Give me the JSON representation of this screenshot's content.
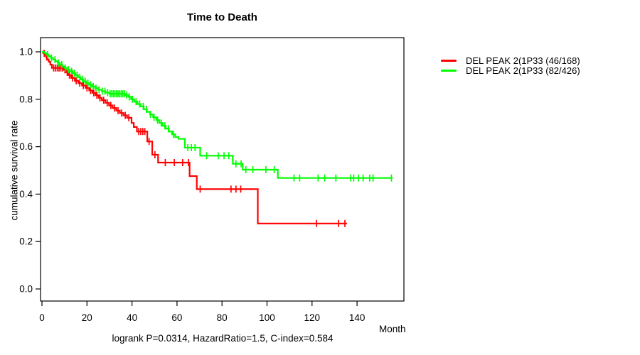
{
  "title": "Time to Death",
  "axes": {
    "ylabel": "cumulative survival rate",
    "xlabel": "Month"
  },
  "annotation": "logrank P=0.0314, HazardRatio=1.5, C-index=0.584",
  "legend": {
    "items": [
      {
        "label": "DEL PEAK  2(1P33 (46/168)",
        "color": "#ff0000"
      },
      {
        "label": "DEL PEAK  2(1P33 (82/426)",
        "color": "#00ff00"
      }
    ]
  },
  "chart_data": {
    "type": "line",
    "variant": "kaplan-meier-step",
    "title": "Time to Death",
    "xlabel": "Month",
    "ylabel": "cumulative survival rate",
    "xlim": [
      0,
      160
    ],
    "ylim": [
      0.0,
      1.0
    ],
    "xticks": [
      0,
      20,
      40,
      60,
      80,
      100,
      120,
      140
    ],
    "yticks": [
      0.0,
      0.2,
      0.4,
      0.6,
      0.8,
      1.0
    ],
    "grid": false,
    "legend_position": "right-outside",
    "annotation": "logrank P=0.0314, HazardRatio=1.5, C-index=0.584",
    "series": [
      {
        "name": "DEL PEAK  2(1P33 (46/168)",
        "color": "#ff0000",
        "end_month": 135.5,
        "steps": [
          [
            0,
            1.0
          ],
          [
            0.6,
            0.994
          ],
          [
            1.2,
            0.988
          ],
          [
            1.8,
            0.978
          ],
          [
            2.4,
            0.968
          ],
          [
            3.0,
            0.958
          ],
          [
            3.7,
            0.946
          ],
          [
            4.4,
            0.932
          ],
          [
            9.6,
            0.924
          ],
          [
            10.6,
            0.914
          ],
          [
            11.6,
            0.902
          ],
          [
            13.0,
            0.89
          ],
          [
            14.6,
            0.878
          ],
          [
            16.2,
            0.868
          ],
          [
            17.8,
            0.858
          ],
          [
            19.4,
            0.848
          ],
          [
            21.0,
            0.837
          ],
          [
            22.4,
            0.827
          ],
          [
            23.8,
            0.817
          ],
          [
            25.2,
            0.806
          ],
          [
            26.6,
            0.796
          ],
          [
            28.2,
            0.785
          ],
          [
            29.8,
            0.774
          ],
          [
            31.4,
            0.763
          ],
          [
            33.0,
            0.752
          ],
          [
            34.6,
            0.742
          ],
          [
            36.2,
            0.732
          ],
          [
            37.8,
            0.722
          ],
          [
            39.8,
            0.7
          ],
          [
            40.8,
            0.683
          ],
          [
            42.2,
            0.664
          ],
          [
            46.8,
            0.622
          ],
          [
            49.0,
            0.566
          ],
          [
            51.6,
            0.533
          ],
          [
            65.6,
            0.476
          ],
          [
            68.8,
            0.421
          ],
          [
            95.9,
            0.276
          ]
        ],
        "censor_months": [
          1.0,
          2.1,
          5.2,
          6.0,
          6.8,
          7.6,
          8.4,
          9.2,
          10.2,
          11.2,
          12.2,
          13.6,
          15.2,
          16.8,
          18.4,
          20.0,
          21.6,
          23.0,
          24.4,
          25.8,
          27.4,
          29.0,
          30.6,
          32.2,
          33.8,
          35.4,
          37.0,
          38.6,
          43.0,
          43.9,
          44.8,
          45.7,
          47.6,
          50.2,
          54.8,
          58.8,
          62.5,
          65.1,
          70.3,
          84.0,
          86.2,
          88.3,
          122.0,
          131.8,
          134.6
        ]
      },
      {
        "name": "DEL PEAK  2(1P33 (82/426)",
        "color": "#00ff00",
        "end_month": 155.8,
        "steps": [
          [
            0,
            1.0
          ],
          [
            1.0,
            0.995
          ],
          [
            2.0,
            0.988
          ],
          [
            3.0,
            0.981
          ],
          [
            4.0,
            0.974
          ],
          [
            5.0,
            0.967
          ],
          [
            6.0,
            0.96
          ],
          [
            7.0,
            0.953
          ],
          [
            8.0,
            0.946
          ],
          [
            9.0,
            0.939
          ],
          [
            10.0,
            0.932
          ],
          [
            11.2,
            0.925
          ],
          [
            12.4,
            0.918
          ],
          [
            13.6,
            0.91
          ],
          [
            14.8,
            0.902
          ],
          [
            16.0,
            0.893
          ],
          [
            17.2,
            0.884
          ],
          [
            18.4,
            0.876
          ],
          [
            19.6,
            0.868
          ],
          [
            20.8,
            0.861
          ],
          [
            22.2,
            0.854
          ],
          [
            23.6,
            0.847
          ],
          [
            25.0,
            0.84
          ],
          [
            26.6,
            0.834
          ],
          [
            28.2,
            0.828
          ],
          [
            30.0,
            0.823
          ],
          [
            36.8,
            0.818
          ],
          [
            38.4,
            0.81
          ],
          [
            39.6,
            0.8
          ],
          [
            41.0,
            0.79
          ],
          [
            42.4,
            0.78
          ],
          [
            43.8,
            0.77
          ],
          [
            45.2,
            0.758
          ],
          [
            46.6,
            0.747
          ],
          [
            48.0,
            0.736
          ],
          [
            49.4,
            0.724
          ],
          [
            50.8,
            0.712
          ],
          [
            52.2,
            0.7
          ],
          [
            53.6,
            0.688
          ],
          [
            55.0,
            0.676
          ],
          [
            56.4,
            0.664
          ],
          [
            57.8,
            0.652
          ],
          [
            59.2,
            0.641
          ],
          [
            60.6,
            0.633
          ],
          [
            63.5,
            0.596
          ],
          [
            70.3,
            0.562
          ],
          [
            84.8,
            0.528
          ],
          [
            89.2,
            0.503
          ],
          [
            104.8,
            0.468
          ]
        ],
        "censor_months": [
          2.5,
          4.2,
          5.8,
          7.4,
          8.8,
          10.4,
          11.8,
          13.2,
          14.4,
          15.6,
          16.8,
          18.0,
          19.2,
          20.4,
          21.6,
          22.8,
          24.0,
          25.4,
          26.8,
          28.0,
          29.2,
          30.3,
          31.0,
          31.7,
          32.4,
          33.1,
          33.8,
          34.5,
          35.2,
          35.9,
          36.6,
          37.6,
          38.8,
          40.2,
          41.8,
          43.4,
          45.0,
          46.4,
          48.2,
          49.8,
          51.4,
          53.0,
          54.6,
          56.2,
          58.4,
          64.8,
          66.4,
          68.0,
          73.2,
          78.3,
          80.9,
          83.0,
          86.2,
          88.5,
          90.6,
          93.7,
          99.5,
          103.2,
          112.0,
          114.5,
          122.7,
          125.6,
          130.6,
          137.2,
          138.5,
          140.6,
          142.7,
          145.6,
          147.1,
          155.3
        ]
      }
    ]
  }
}
